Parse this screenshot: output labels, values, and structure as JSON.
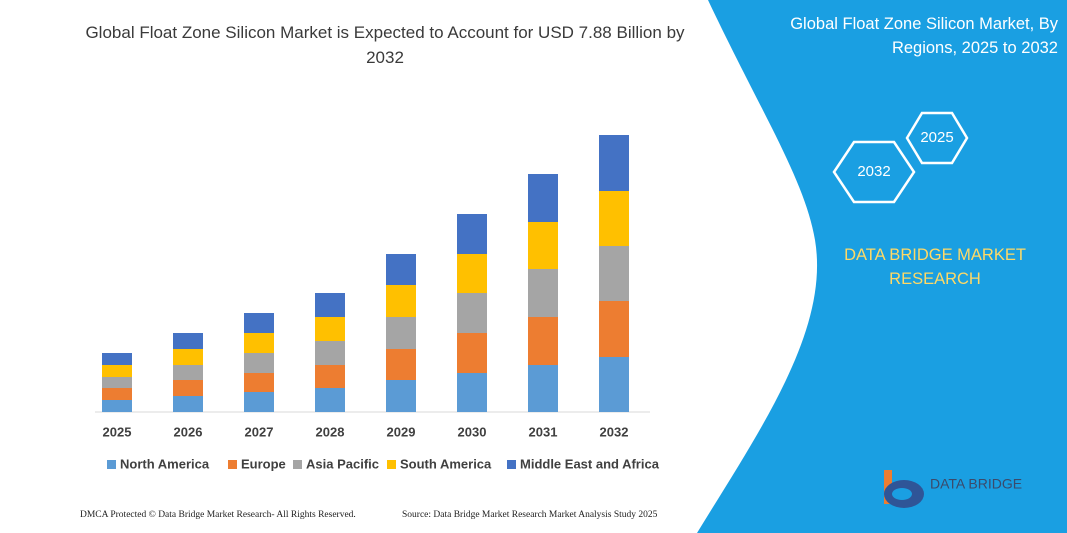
{
  "chart_data": {
    "type": "bar",
    "stacked": true,
    "title": "Global Float Zone Silicon Market is Expected to Account for USD 7.88 Billion by 2032",
    "categories": [
      "2025",
      "2026",
      "2027",
      "2028",
      "2029",
      "2030",
      "2031",
      "2032"
    ],
    "series": [
      {
        "name": "North America",
        "color": "#5b9bd5",
        "values": [
          12,
          16,
          20,
          24,
          32,
          39,
          47,
          55
        ]
      },
      {
        "name": "Europe",
        "color": "#ed7d31",
        "values": [
          12,
          16,
          19,
          23,
          31,
          40,
          48,
          56
        ]
      },
      {
        "name": "Asia Pacific",
        "color": "#a5a5a5",
        "values": [
          11,
          15,
          20,
          24,
          32,
          40,
          48,
          55
        ]
      },
      {
        "name": "South America",
        "color": "#ffc000",
        "values": [
          12,
          16,
          20,
          24,
          32,
          39,
          47,
          55
        ]
      },
      {
        "name": "Middle East and Africa",
        "color": "#4472c4",
        "values": [
          12,
          16,
          20,
          24,
          31,
          40,
          48,
          56
        ]
      }
    ],
    "ylim": [
      0,
      300
    ],
    "grid": false,
    "legend": "bottom"
  },
  "panel": {
    "title": "Global Float Zone Silicon Market, By Regions, 2025 to 2032",
    "hex_front": "2032",
    "hex_back": "2025",
    "brand": "DATA BRIDGE MARKET RESEARCH"
  },
  "logo": "DATA BRIDGE",
  "footer": {
    "left": "DMCA Protected © Data Bridge Market Research- All Rights Reserved.",
    "right": "Source: Data Bridge Market Research Market Analysis Study 2025"
  }
}
